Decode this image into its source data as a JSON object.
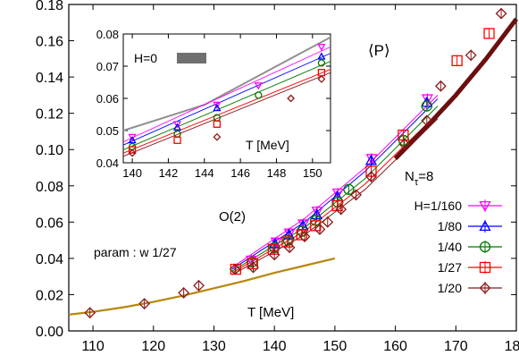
{
  "chart_data": [
    {
      "type": "scatter",
      "xlabel": "T [MeV]",
      "ylabel": "",
      "xlim": [
        106,
        180
      ],
      "ylim": [
        0.0,
        0.18
      ],
      "xticks": [
        "110",
        "120",
        "130",
        "140",
        "150",
        "160",
        "170",
        "180"
      ],
      "yticks": [
        "0.00",
        "0.02",
        "0.04",
        "0.06",
        "0.08",
        "0.10",
        "0.12",
        "0.14",
        "0.16",
        "0.18"
      ],
      "grid": false,
      "legend_position": "right",
      "legend_header": "N",
      "legend_header_sub": "τ",
      "legend_header_suffix": "=8",
      "annotations": {
        "observable": "⟨P⟩",
        "o2": "O(2)",
        "param": "param : w 1/27"
      },
      "series": [
        {
          "name": "H=1/160",
          "color": "#ff00ff",
          "marker": "triangle-down",
          "x": [
            136.2,
            140.3,
            142.5,
            144.8,
            147.1,
            150.5,
            156.1,
            165.3
          ],
          "y": [
            0.039,
            0.049,
            0.054,
            0.059,
            0.066,
            0.076,
            0.095,
            0.128
          ]
        },
        {
          "name": "1/80",
          "color": "#0000ff",
          "marker": "triangle-up",
          "x": [
            140.1,
            142.4,
            144.7,
            147.0,
            150.4,
            156.0,
            165.2
          ],
          "y": [
            0.048,
            0.053,
            0.058,
            0.064,
            0.074,
            0.094,
            0.126
          ]
        },
        {
          "name": "1/40",
          "color": "#007a00",
          "marker": "circle",
          "x": [
            136.3,
            140.0,
            142.3,
            144.6,
            146.8,
            150.5,
            152.3,
            161.4,
            165.2
          ],
          "y": [
            0.038,
            0.046,
            0.05,
            0.055,
            0.061,
            0.071,
            0.078,
            0.105,
            0.124
          ]
        },
        {
          "name": "1/27",
          "color": "#ff0000",
          "marker": "square",
          "x": [
            133.6,
            136.4,
            139.8,
            142.1,
            144.5,
            146.8,
            150.4,
            156.0,
            161.3,
            170.2,
            175.5
          ],
          "y": [
            0.034,
            0.037,
            0.045,
            0.049,
            0.053,
            0.058,
            0.069,
            0.088,
            0.108,
            0.149,
            0.164
          ]
        },
        {
          "name": "1/20",
          "color": "#8b1a1a",
          "marker": "diamond",
          "x": [
            109.5,
            118.5,
            125.0,
            127.5,
            133.5,
            136.5,
            140.0,
            142.5,
            145.0,
            147.5,
            148.8,
            151.0,
            153.5,
            156.0,
            161.5,
            165.2,
            167.5,
            172.5,
            177.5
          ],
          "y": [
            0.01,
            0.015,
            0.021,
            0.025,
            0.034,
            0.035,
            0.042,
            0.046,
            0.052,
            0.056,
            0.06,
            0.067,
            0.075,
            0.085,
            0.103,
            0.116,
            0.135,
            0.152,
            0.175
          ]
        }
      ],
      "curves": [
        {
          "name": "param : w 1/27",
          "color": "#b8860b",
          "x": [
            106,
            110,
            115,
            120,
            125,
            130,
            135,
            140,
            145,
            150
          ],
          "y": [
            0.009,
            0.0105,
            0.013,
            0.016,
            0.0195,
            0.0235,
            0.0275,
            0.032,
            0.036,
            0.04
          ]
        }
      ],
      "fit_bands": [
        {
          "color": "#ff00ff",
          "x": [
            133,
            145,
            155,
            167
          ],
          "y": [
            0.035,
            0.062,
            0.09,
            0.13
          ]
        },
        {
          "color": "#0000ff",
          "x": [
            133,
            145,
            155,
            167
          ],
          "y": [
            0.034,
            0.06,
            0.088,
            0.128
          ]
        },
        {
          "color": "#007a00",
          "x": [
            133,
            145,
            155,
            167
          ],
          "y": [
            0.033,
            0.057,
            0.084,
            0.124
          ]
        },
        {
          "color": "#ff0000",
          "x": [
            133,
            145,
            155,
            167
          ],
          "y": [
            0.032,
            0.055,
            0.081,
            0.12
          ]
        },
        {
          "color": "#8b1a1a",
          "x": [
            133,
            145,
            155,
            167
          ],
          "y": [
            0.031,
            0.053,
            0.078,
            0.117
          ]
        }
      ],
      "h0_band": {
        "name": "H=0",
        "color": "#707070",
        "x": [
          160,
          165,
          170,
          175,
          180
        ],
        "y": [
          0.095,
          0.112,
          0.13,
          0.15,
          0.172
        ]
      }
    },
    {
      "type": "scatter",
      "xlabel": "T [MeV]",
      "xlim": [
        139.5,
        151.0
      ],
      "ylim": [
        0.04,
        0.08
      ],
      "xticks": [
        "140",
        "142",
        "144",
        "146",
        "148",
        "150"
      ],
      "yticks": [
        "0.04",
        "0.05",
        "0.06",
        "0.07",
        "0.08"
      ],
      "legend": "H=0",
      "h0_color": "#909090",
      "h0_line": {
        "x": [
          139.5,
          144,
          146,
          148,
          151
        ],
        "y": [
          0.05,
          0.058,
          0.064,
          0.07,
          0.079
        ]
      },
      "lines": [
        {
          "color": "#ff00ff",
          "x": [
            139.5,
            151
          ],
          "y": [
            0.0465,
            0.076
          ]
        },
        {
          "color": "#0000ff",
          "x": [
            139.5,
            151
          ],
          "y": [
            0.0455,
            0.074
          ]
        },
        {
          "color": "#007a00",
          "x": [
            139.5,
            151
          ],
          "y": [
            0.044,
            0.0715
          ]
        },
        {
          "color": "#ff0000",
          "x": [
            139.5,
            151
          ],
          "y": [
            0.043,
            0.069
          ]
        },
        {
          "color": "#8b1a1a",
          "x": [
            139.5,
            151
          ],
          "y": [
            0.042,
            0.068
          ]
        }
      ],
      "series": [
        {
          "name": "H=1/160",
          "color": "#ff00ff",
          "marker": "triangle-down",
          "x": [
            140.0,
            142.5,
            144.7,
            147.0,
            150.5
          ],
          "y": [
            0.048,
            0.052,
            0.058,
            0.064,
            0.076
          ]
        },
        {
          "name": "1/80",
          "color": "#0000ff",
          "marker": "triangle-up",
          "x": [
            140.0,
            142.5,
            144.7,
            150.5
          ],
          "y": [
            0.047,
            0.051,
            0.057,
            0.073
          ]
        },
        {
          "name": "1/40",
          "color": "#007a00",
          "marker": "circle",
          "x": [
            140.0,
            142.5,
            144.7,
            147.0,
            150.5
          ],
          "y": [
            0.045,
            0.049,
            0.054,
            0.061,
            0.071
          ]
        },
        {
          "name": "1/27",
          "color": "#ff0000",
          "marker": "square",
          "x": [
            140.0,
            142.5,
            144.7,
            150.5
          ],
          "y": [
            0.044,
            0.047,
            0.052,
            0.068
          ]
        },
        {
          "name": "1/20",
          "color": "#8b1a1a",
          "marker": "diamond",
          "x": [
            140.0,
            144.7,
            148.8,
            150.5
          ],
          "y": [
            0.043,
            0.048,
            0.06,
            0.066
          ]
        }
      ]
    }
  ]
}
